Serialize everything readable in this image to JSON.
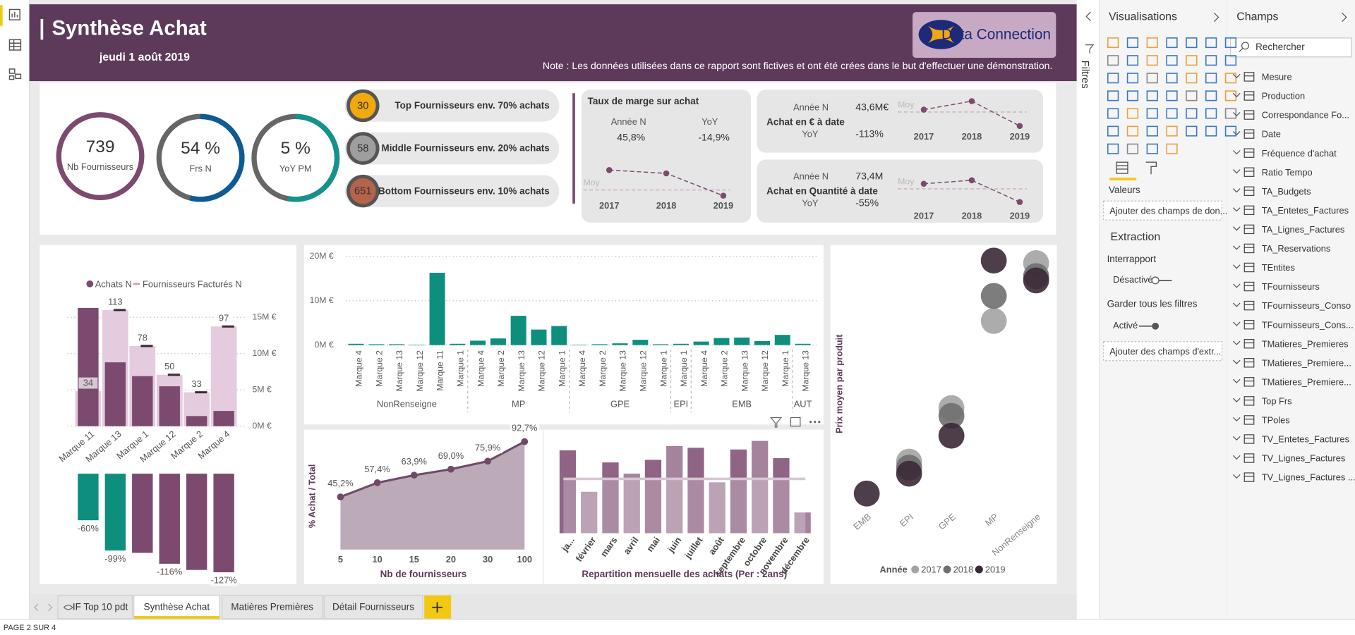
{
  "header": {
    "title": "Synthèse Achat",
    "date": "jeudi 1 août 2019",
    "logo": "Data Connection",
    "note": "Note : Les données utilisées dans ce rapport  sont fictives et ont été crées dans le but d'effectuer une démonstration."
  },
  "kpi_rings": [
    {
      "value": "739",
      "label": "Nb Fournisseurs"
    },
    {
      "value": "54 %",
      "label": "Frs N"
    },
    {
      "value": "5 %",
      "label": "YoY PM"
    }
  ],
  "supplier_tiers": [
    {
      "count": "30",
      "label": "Top Fournisseurs env. 70% achats",
      "color": "#f0a90f"
    },
    {
      "count": "58",
      "label": "Middle Fournisseurs env. 20% achats",
      "color": "#9e9e9e"
    },
    {
      "count": "651",
      "label": "Bottom Fournisseurs env. 10% achats",
      "color": "#b5634a"
    }
  ],
  "margin_card": {
    "title": "Taux de marge sur achat",
    "year_label": "Année N",
    "yoy_label": "YoY",
    "value": "45,8%",
    "yoy": "-14,9%"
  },
  "purchase_cards": [
    {
      "title": "Achat en € à date",
      "year_label": "Année N",
      "value": "43,6M€",
      "yoy_label": "YoY",
      "yoy": "-113%"
    },
    {
      "title": "Achat en Quantité à date",
      "year_label": "Année N",
      "value": "73,4M",
      "yoy_label": "YoY",
      "yoy": "-55%"
    }
  ],
  "chart_data": [
    {
      "type": "line",
      "categories": [
        "2017",
        "2018",
        "2019"
      ],
      "values": [
        78,
        71,
        24
      ],
      "ylim": [
        0,
        100
      ],
      "reference_label": "Moy",
      "reference_value": 36,
      "color": "#7b4a6e"
    },
    {
      "type": "line",
      "categories": [
        "2017",
        "2018",
        "2019"
      ],
      "values": [
        62,
        84,
        20
      ],
      "ylim": [
        0,
        100
      ],
      "reference_label": "Moy",
      "reference_value": 56,
      "color": "#7b4a6e"
    },
    {
      "type": "line",
      "categories": [
        "2017",
        "2018",
        "2019"
      ],
      "values": [
        60,
        69,
        13
      ],
      "ylim": [
        0,
        100
      ],
      "reference_label": "Moy",
      "reference_value": 47,
      "color": "#7b4a6e"
    },
    {
      "type": "combo",
      "categories": [
        "Marque 11",
        "Marque 13",
        "Marque 1",
        "Marque 12",
        "Marque 2",
        "Marque 4"
      ],
      "series": [
        {
          "name": "Achats N",
          "color": "#7b4a6e",
          "values": [
            16.3,
            8.8,
            6.9,
            5.5,
            1.4,
            2.1
          ]
        },
        {
          "name": "Fournisseurs Facturés N",
          "color": "#e4cbdd",
          "axis": "y2",
          "values": [
            34,
            113,
            78,
            50,
            33,
            97
          ]
        }
      ],
      "ylim": [
        0,
        17
      ],
      "yticks": [
        {
          "value": 0,
          "label": "0M €"
        },
        {
          "value": 5,
          "label": "5M €"
        },
        {
          "value": 10,
          "label": "10M €"
        },
        {
          "value": 15,
          "label": "15M €"
        }
      ],
      "y2lim": [
        0,
        120
      ],
      "grid": true,
      "legend": "top"
    },
    {
      "type": "bar",
      "values": [
        -60,
        -99,
        -102,
        -116,
        -124,
        -127
      ],
      "value_labels": [
        "-60%",
        "-99%",
        null,
        "-116%",
        null,
        "-127%"
      ],
      "colors": [
        "#0e8f7e",
        "#0e8f7e",
        "#7b4a6e",
        "#7b4a6e",
        "#7b4a6e",
        "#7b4a6e"
      ],
      "ylim": [
        -130,
        0
      ]
    },
    {
      "type": "grouped-bar",
      "groups": [
        {
          "name": "NonRenseigne",
          "categories": [
            "Marque 4",
            "Marque 2",
            "Marque 13",
            "Marque 12",
            "Marque 11",
            "Marque 1"
          ],
          "values": [
            0.3,
            0.2,
            0.2,
            0.1,
            16.3,
            0.3
          ]
        },
        {
          "name": "MP",
          "categories": [
            "Marque 4",
            "Marque 2",
            "Marque 13",
            "Marque 12",
            "Marque 1"
          ],
          "values": [
            1.0,
            1.5,
            6.6,
            3.5,
            4.3
          ]
        },
        {
          "name": "GPE",
          "categories": [
            "Marque 4",
            "Marque 2",
            "Marque 13",
            "Marque 12",
            "Marque 1"
          ],
          "values": [
            0.1,
            0.2,
            0.4,
            1.2,
            0.2
          ]
        },
        {
          "name": "EPI",
          "categories": [
            "Marque 1"
          ],
          "values": [
            0.3
          ]
        },
        {
          "name": "EMB",
          "categories": [
            "Marque 4",
            "Marque 2",
            "Marque 13",
            "Marque 12",
            "Marque 1"
          ],
          "values": [
            0.8,
            1.6,
            1.7,
            0.9,
            2.3
          ]
        },
        {
          "name": "AUT",
          "categories": [
            "Marque 13"
          ],
          "values": [
            0.3
          ]
        }
      ],
      "ylim": [
        0,
        21
      ],
      "yticks": [
        {
          "value": 0,
          "label": "0M €"
        },
        {
          "value": 10,
          "label": "10M €"
        },
        {
          "value": 20,
          "label": "20M €"
        }
      ],
      "grid": true,
      "color": "#0e8f7e"
    },
    {
      "type": "area",
      "x_label": "Nb de fournisseurs",
      "y_label": "% Achat / Total",
      "categories": [
        "5",
        "10",
        "15",
        "20",
        "30",
        "100"
      ],
      "values": [
        45.2,
        57.4,
        63.9,
        69.0,
        75.9,
        92.7
      ],
      "value_labels": [
        "45,2%",
        "57,4%",
        "63,9%",
        "69,0%",
        "75,9%",
        "92,7%"
      ],
      "ylim": [
        0,
        100
      ],
      "color": "#6e4a68",
      "area_color": "#bcaab8"
    },
    {
      "type": "bar",
      "title": "Repartition mensuelle des achats (Per : 2ans)",
      "categories": [
        "ja...",
        "février",
        "mars",
        "avril",
        "mai",
        "juin",
        "juillet",
        "août",
        "septembre",
        "octobre",
        "novembre",
        "décembre"
      ],
      "values": [
        96,
        48,
        82,
        69,
        85,
        101,
        99,
        59,
        97,
        107,
        87,
        24
      ],
      "ylim": [
        0,
        110
      ],
      "reference_value": 63,
      "color": "#8f6485"
    },
    {
      "type": "scatter",
      "y_label": "Prix moyen par produit",
      "categories": [
        "EMB",
        "EPI",
        "GPE",
        "MP",
        "NonRenseigne"
      ],
      "legend_title": "Année",
      "series": [
        {
          "name": "2017",
          "color": "#a3a3a3",
          "values": [
            null,
            65,
            127,
            228,
            295
          ]
        },
        {
          "name": "2018",
          "color": "#6f6f6f",
          "values": [
            null,
            58,
            118,
            257,
            280
          ]
        },
        {
          "name": "2019",
          "color": "#3b2837",
          "values": [
            28,
            51,
            95,
            298,
            275
          ]
        }
      ],
      "ylim": [
        0,
        310
      ],
      "legend": "bottom"
    }
  ],
  "filters_label": "Filtres",
  "visualizations_panel": {
    "title": "Visualisations",
    "values_label": "Valeurs",
    "values_drop": "Ajouter des champs de don...",
    "extraction": "Extraction",
    "cross_report": "Interrapport",
    "cross_report_state": "Désactivé",
    "keep_filters": "Garder tous les filtres",
    "keep_filters_state": "Activé",
    "extraction_drop": "Ajouter des champs d'extr..."
  },
  "fields_panel": {
    "title": "Champs",
    "search": "Rechercher",
    "fields": [
      "Mesure",
      "Production",
      "Correspondance Fo...",
      "Date",
      "Fréquence d'achat",
      "Ratio Tempo",
      "TA_Budgets",
      "TA_Entetes_Factures",
      "TA_Lignes_Factures",
      "TA_Reservations",
      "TEntites",
      "TFournisseurs",
      "TFournisseurs_Conso",
      "TFournisseurs_Cons...",
      "TMatieres_Premieres",
      "TMatieres_Premiere...",
      "TMatieres_Premiere...",
      "Top Frs",
      "TPoles",
      "TV_Entetes_Factures",
      "TV_Lignes_Factures",
      "TV_Lignes_Factures ..."
    ]
  },
  "tabs": [
    "IF Top 10 pdt",
    "Synthèse Achat",
    "Matières Premières",
    "Détail Fournisseurs"
  ],
  "status": "PAGE 2 SUR 4"
}
